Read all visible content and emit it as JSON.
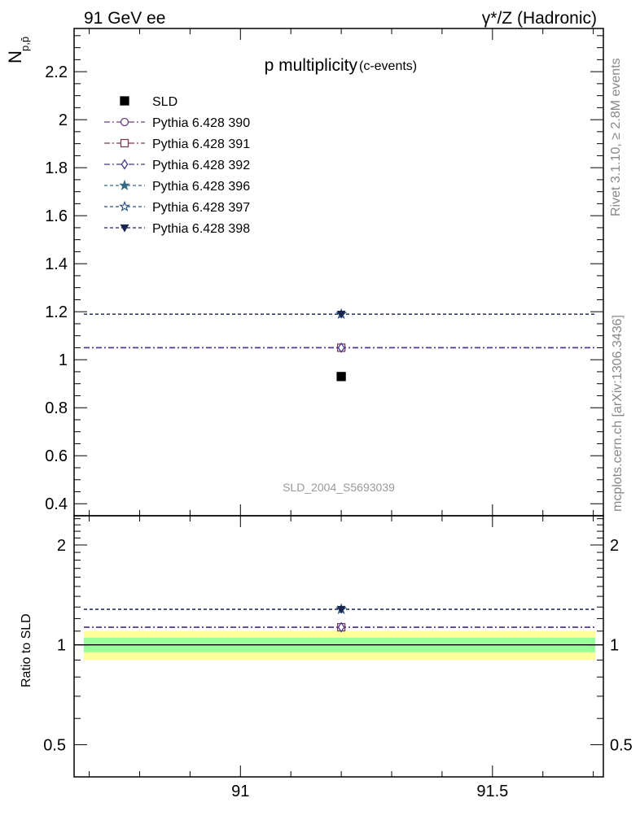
{
  "header": {
    "left": "91 GeV ee",
    "right": "γ*/Z (Hadronic)"
  },
  "side": {
    "rivet": "Rivet 3.1.10, ≥ 2.8M events",
    "mcplots": "mcplots.cern.ch [arXiv:1306.3436]"
  },
  "chart_data": [
    {
      "type": "scatter",
      "title": "p multiplicity",
      "title_suffix": "(c-events)",
      "ylabel": "N",
      "ylabel_sub": "p,p̄",
      "analysis_tag": "SLD_2004_S5693039",
      "xlim": [
        90.67,
        91.72
      ],
      "ylim": [
        0.35,
        2.38
      ],
      "yticks": [
        "0.4",
        "0.6",
        "0.8",
        "1",
        "1.2",
        "1.4",
        "1.6",
        "1.8",
        "2",
        "2.2"
      ],
      "legend_position": "top-left",
      "series": [
        {
          "name": "SLD",
          "color": "#000000",
          "marker": "square-filled",
          "line": "none",
          "x": [
            91.2
          ],
          "y": [
            0.93
          ]
        },
        {
          "name": "Pythia 6.428 390",
          "color": "#6b3a7d",
          "marker": "circle-open",
          "line": "dashdot",
          "x": [
            91.2
          ],
          "y": [
            1.05
          ]
        },
        {
          "name": "Pythia 6.428 391",
          "color": "#7a3a55",
          "marker": "square-open",
          "line": "dashdot",
          "x": [
            91.2
          ],
          "y": [
            1.05
          ]
        },
        {
          "name": "Pythia 6.428 392",
          "color": "#4a3690",
          "marker": "diamond-open",
          "line": "dashdot",
          "x": [
            91.2
          ],
          "y": [
            1.05
          ]
        },
        {
          "name": "Pythia 6.428 396",
          "color": "#356b85",
          "marker": "star-filled",
          "line": "dashed",
          "x": [
            91.2
          ],
          "y": [
            1.19
          ]
        },
        {
          "name": "Pythia 6.428 397",
          "color": "#2b4f7a",
          "marker": "star-open",
          "line": "dashed",
          "x": [
            91.2
          ],
          "y": [
            1.19
          ]
        },
        {
          "name": "Pythia 6.428 398",
          "color": "#1c2450",
          "marker": "triangle-down-filled",
          "line": "dashed",
          "x": [
            91.2
          ],
          "y": [
            1.19
          ]
        }
      ]
    },
    {
      "type": "scatter",
      "ylabel": "Ratio to SLD",
      "ylim": [
        0.4,
        2.45
      ],
      "log_y": true,
      "xticks": [
        "91",
        "91.5"
      ],
      "yticks": [
        "0.5",
        "1",
        "2"
      ],
      "reference_band": {
        "inner": [
          0.95,
          1.05
        ],
        "outer": [
          0.9,
          1.1
        ],
        "inner_color": "#99ff99",
        "outer_color": "#ffff99"
      },
      "series": [
        {
          "name": "Pythia 6.428 390",
          "x": [
            91.2
          ],
          "y": [
            1.13
          ]
        },
        {
          "name": "Pythia 6.428 391",
          "x": [
            91.2
          ],
          "y": [
            1.13
          ]
        },
        {
          "name": "Pythia 6.428 392",
          "x": [
            91.2
          ],
          "y": [
            1.13
          ]
        },
        {
          "name": "Pythia 6.428 396",
          "x": [
            91.2
          ],
          "y": [
            1.28
          ]
        },
        {
          "name": "Pythia 6.428 397",
          "x": [
            91.2
          ],
          "y": [
            1.28
          ]
        },
        {
          "name": "Pythia 6.428 398",
          "x": [
            91.2
          ],
          "y": [
            1.28
          ]
        }
      ]
    }
  ]
}
